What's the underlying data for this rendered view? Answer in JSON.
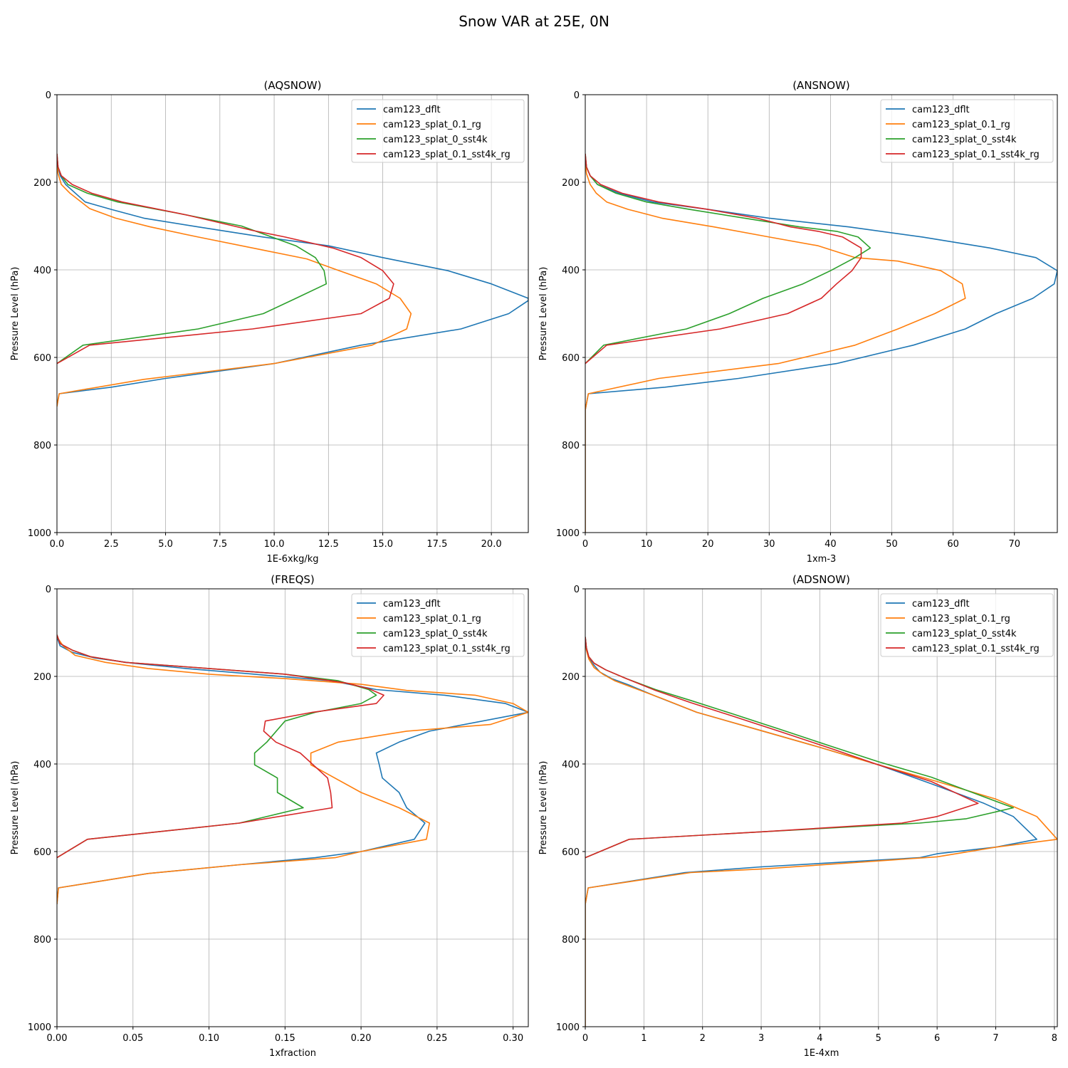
{
  "figure_title": "Snow VAR at 25E, 0N",
  "colors": {
    "cam123_dflt": "#1f77b4",
    "cam123_splat_0.1_rg": "#ff7f0e",
    "cam123_splat_0_sst4k": "#2ca02c",
    "cam123_splat_0.1_sst4k_rg": "#d62728"
  },
  "chart_data": [
    {
      "type": "line",
      "title": "(AQSNOW)",
      "xlabel": "1E-6xkg/kg",
      "ylabel": "Pressure Level (hPa)",
      "xlim": [
        0,
        21.7
      ],
      "ylim": [
        1000,
        0
      ],
      "xticks": [
        0,
        2.5,
        5,
        7.5,
        10,
        12.5,
        15,
        17.5,
        20
      ],
      "xtick_labels": [
        "0.0",
        "2.5",
        "5.0",
        "7.5",
        "10.0",
        "12.5",
        "15.0",
        "17.5",
        "20.0"
      ],
      "yticks": [
        0,
        200,
        400,
        600,
        800,
        1000
      ],
      "ytick_labels": [
        "0",
        "200",
        "400",
        "600",
        "800",
        "1000"
      ],
      "grid": true,
      "legend": "top-right",
      "series": [
        {
          "name": "cam123_dflt",
          "x": [
            0,
            0.05,
            0.15,
            0.4,
            1.3,
            2.5,
            4,
            6.5,
            9.5,
            12.5,
            15,
            18,
            20,
            21.7,
            21.7,
            20.8,
            18.6,
            14,
            10,
            5,
            2.5,
            0.1,
            0
          ],
          "y": [
            140,
            165,
            185,
            205,
            245,
            262,
            282,
            302,
            325,
            345,
            372,
            402,
            432,
            465,
            470,
            500,
            535,
            572,
            614,
            648,
            668,
            683,
            710
          ]
        },
        {
          "name": "cam123_splat_0.1_rg",
          "x": [
            0,
            0.05,
            0.2,
            0.6,
            1.5,
            2.7,
            4.3,
            6.5,
            9.5,
            11.5,
            13,
            14.7,
            15.8,
            16.3,
            16.1,
            14.5,
            10,
            4,
            0.1,
            0
          ],
          "y": [
            150,
            180,
            205,
            225,
            260,
            282,
            302,
            325,
            355,
            375,
            402,
            432,
            465,
            500,
            535,
            572,
            614,
            650,
            683,
            712
          ]
        },
        {
          "name": "cam123_splat_0_sst4k",
          "x": [
            0,
            0.05,
            0.2,
            0.5,
            1.4,
            2.8,
            5.5,
            8.5,
            11,
            11.9,
            12.3,
            12.4,
            11,
            9.5,
            6.5,
            1.2,
            0
          ],
          "y": [
            135,
            165,
            185,
            205,
            225,
            245,
            270,
            300,
            345,
            372,
            402,
            432,
            465,
            500,
            535,
            572,
            614
          ]
        },
        {
          "name": "cam123_splat_0.1_sst4k_rg",
          "x": [
            0,
            0.05,
            0.2,
            0.7,
            1.6,
            3,
            6,
            9,
            10.5,
            12.7,
            14,
            15,
            15.5,
            15.3,
            14,
            9,
            1.5,
            0
          ],
          "y": [
            135,
            165,
            185,
            205,
            225,
            245,
            275,
            310,
            325,
            350,
            372,
            402,
            432,
            465,
            500,
            535,
            572,
            614
          ]
        }
      ]
    },
    {
      "type": "line",
      "title": "(ANSNOW)",
      "xlabel": "1xm-3",
      "ylabel": "Pressure Level (hPa)",
      "xlim": [
        0,
        77
      ],
      "ylim": [
        1000,
        0
      ],
      "xticks": [
        0,
        10,
        20,
        30,
        40,
        50,
        60,
        70
      ],
      "xtick_labels": [
        "0",
        "10",
        "20",
        "30",
        "40",
        "50",
        "60",
        "70"
      ],
      "yticks": [
        0,
        200,
        400,
        600,
        800,
        1000
      ],
      "ytick_labels": [
        "0",
        "200",
        "400",
        "600",
        "800",
        "1000"
      ],
      "grid": true,
      "legend": "top-right",
      "series": [
        {
          "name": "cam123_dflt",
          "x": [
            0,
            0.2,
            0.8,
            2,
            5.5,
            11,
            20,
            30,
            43,
            55,
            66,
            73.5,
            77,
            76.5,
            73,
            67,
            62,
            53.5,
            41,
            25,
            13,
            0.5,
            0,
            0
          ],
          "y": [
            140,
            165,
            185,
            205,
            225,
            245,
            262,
            282,
            302,
            325,
            350,
            372,
            402,
            432,
            465,
            500,
            535,
            572,
            614,
            648,
            668,
            683,
            720,
            1000
          ]
        },
        {
          "name": "cam123_splat_0.1_rg",
          "x": [
            0,
            0.2,
            0.8,
            1.8,
            3.5,
            7,
            12.5,
            21,
            30,
            38,
            44,
            51,
            58,
            61.5,
            62,
            57,
            51,
            44,
            31.5,
            12,
            0.5,
            0,
            0
          ],
          "y": [
            150,
            180,
            205,
            225,
            245,
            262,
            282,
            302,
            325,
            345,
            372,
            380,
            402,
            432,
            465,
            500,
            535,
            572,
            614,
            648,
            683,
            720,
            1000
          ]
        },
        {
          "name": "cam123_splat_0_sst4k",
          "x": [
            0,
            0.2,
            0.8,
            2,
            5,
            10,
            17,
            26,
            35,
            41,
            44.5,
            46.5,
            44,
            40,
            35.5,
            29,
            23.5,
            16.5,
            3,
            0
          ],
          "y": [
            135,
            165,
            185,
            205,
            225,
            245,
            262,
            282,
            302,
            312,
            325,
            350,
            372,
            402,
            432,
            465,
            500,
            535,
            572,
            614
          ]
        },
        {
          "name": "cam123_splat_0.1_sst4k_rg",
          "x": [
            0,
            0.2,
            0.8,
            2.5,
            6,
            12,
            20,
            28,
            33.5,
            38,
            42,
            45,
            45,
            43.5,
            41,
            38.5,
            33,
            22,
            3.5,
            0
          ],
          "y": [
            135,
            165,
            185,
            205,
            225,
            245,
            262,
            282,
            302,
            312,
            325,
            350,
            372,
            402,
            432,
            465,
            500,
            535,
            572,
            614
          ]
        }
      ]
    },
    {
      "type": "line",
      "title": "(FREQS)",
      "xlabel": "1xfraction",
      "ylabel": "Pressure Level (hPa)",
      "xlim": [
        0,
        0.31
      ],
      "ylim": [
        1000,
        0
      ],
      "xticks": [
        0,
        0.05,
        0.1,
        0.15,
        0.2,
        0.25,
        0.3
      ],
      "xtick_labels": [
        "0.00",
        "0.05",
        "0.10",
        "0.15",
        "0.20",
        "0.25",
        "0.30"
      ],
      "yticks": [
        0,
        200,
        400,
        600,
        800,
        1000
      ],
      "ytick_labels": [
        "0",
        "200",
        "400",
        "600",
        "800",
        "1000"
      ],
      "grid": true,
      "legend": "top-right",
      "series": [
        {
          "name": "cam123_dflt",
          "x": [
            0,
            0.002,
            0.01,
            0.025,
            0.05,
            0.085,
            0.13,
            0.18,
            0.21,
            0.255,
            0.295,
            0.31,
            0.245,
            0.225,
            0.21,
            0.212,
            0.214,
            0.225,
            0.23,
            0.242,
            0.235,
            0.2,
            0.17,
            0.12,
            0.06,
            0.001,
            0
          ],
          "y": [
            110,
            130,
            145,
            158,
            170,
            182,
            195,
            210,
            230,
            243,
            262,
            282,
            325,
            350,
            375,
            402,
            432,
            465,
            500,
            535,
            572,
            600,
            614,
            630,
            650,
            683,
            720
          ]
        },
        {
          "name": "cam123_splat_0.1_rg",
          "x": [
            0,
            0.004,
            0.012,
            0.032,
            0.06,
            0.1,
            0.15,
            0.2,
            0.23,
            0.275,
            0.3,
            0.31,
            0.285,
            0.23,
            0.185,
            0.167,
            0.167,
            0.2,
            0.225,
            0.245,
            0.243,
            0.2,
            0.183,
            0.12,
            0.06,
            0.001,
            0
          ],
          "y": [
            110,
            130,
            152,
            168,
            182,
            195,
            205,
            218,
            232,
            243,
            262,
            282,
            310,
            325,
            350,
            375,
            402,
            465,
            500,
            535,
            572,
            600,
            614,
            630,
            650,
            683,
            720
          ]
        },
        {
          "name": "cam123_splat_0_sst4k",
          "x": [
            0,
            0.002,
            0.01,
            0.022,
            0.045,
            0.1,
            0.15,
            0.185,
            0.205,
            0.21,
            0.2,
            0.17,
            0.15,
            0.138,
            0.13,
            0.13,
            0.145,
            0.145,
            0.162,
            0.12,
            0.02,
            0
          ],
          "y": [
            105,
            125,
            140,
            155,
            168,
            182,
            195,
            210,
            230,
            243,
            262,
            282,
            302,
            350,
            375,
            402,
            432,
            465,
            500,
            535,
            572,
            614
          ]
        },
        {
          "name": "cam123_splat_0.1_sst4k_rg",
          "x": [
            0,
            0.002,
            0.01,
            0.022,
            0.045,
            0.1,
            0.15,
            0.19,
            0.205,
            0.215,
            0.21,
            0.168,
            0.137,
            0.136,
            0.144,
            0.16,
            0.178,
            0.18,
            0.181,
            0.12,
            0.02,
            0
          ],
          "y": [
            105,
            125,
            140,
            155,
            168,
            182,
            195,
            215,
            228,
            243,
            262,
            282,
            302,
            325,
            350,
            375,
            432,
            465,
            500,
            535,
            572,
            614
          ]
        }
      ]
    },
    {
      "type": "line",
      "title": "(ADSNOW)",
      "xlabel": "1E-4xm",
      "ylabel": "Pressure Level (hPa)",
      "xlim": [
        0,
        8.05
      ],
      "ylim": [
        1000,
        0
      ],
      "xticks": [
        0,
        1,
        2,
        3,
        4,
        5,
        6,
        7,
        8
      ],
      "xtick_labels": [
        "0",
        "1",
        "2",
        "3",
        "4",
        "5",
        "6",
        "7",
        "8"
      ],
      "yticks": [
        0,
        200,
        400,
        600,
        800,
        1000
      ],
      "ytick_labels": [
        "0",
        "200",
        "400",
        "600",
        "800",
        "1000"
      ],
      "grid": true,
      "legend": "top-right",
      "series": [
        {
          "name": "cam123_dflt",
          "x": [
            0,
            0.02,
            0.06,
            0.12,
            0.25,
            0.45,
            0.75,
            1.2,
            1.9,
            2.9,
            4,
            5,
            5.9,
            6.8,
            7.3,
            7.7,
            7,
            6,
            5.7,
            3,
            1.7,
            0.05,
            0,
            0
          ],
          "y": [
            110,
            135,
            155,
            170,
            190,
            205,
            220,
            245,
            282,
            320,
            362,
            402,
            445,
            490,
            520,
            572,
            590,
            605,
            614,
            635,
            648,
            683,
            720,
            1000
          ]
        },
        {
          "name": "cam123_splat_0.1_rg",
          "x": [
            0,
            0.02,
            0.06,
            0.15,
            0.3,
            0.5,
            0.8,
            1.3,
            1.9,
            2.9,
            4,
            5,
            6,
            7,
            7.7,
            8.05,
            7,
            6,
            3,
            1.8,
            0.05,
            0,
            0
          ],
          "y": [
            115,
            140,
            160,
            180,
            195,
            210,
            225,
            250,
            282,
            320,
            362,
            402,
            440,
            480,
            520,
            572,
            590,
            612,
            640,
            648,
            683,
            720,
            1000
          ]
        },
        {
          "name": "cam123_splat_0_sst4k",
          "x": [
            0,
            0.02,
            0.06,
            0.15,
            0.35,
            0.7,
            1.2,
            1.8,
            2.5,
            3.3,
            4.2,
            5,
            5.9,
            6.6,
            7.3,
            6.5,
            5.7,
            3,
            0.75,
            0
          ],
          "y": [
            110,
            135,
            155,
            170,
            185,
            205,
            230,
            255,
            285,
            320,
            360,
            395,
            430,
            465,
            500,
            525,
            535,
            555,
            572,
            614
          ]
        },
        {
          "name": "cam123_splat_0.1_sst4k_rg",
          "x": [
            0,
            0.02,
            0.06,
            0.15,
            0.35,
            0.7,
            1.2,
            1.8,
            2.5,
            3.3,
            4.2,
            5,
            5.9,
            6.7,
            6,
            5.4,
            3,
            0.75,
            0
          ],
          "y": [
            110,
            135,
            155,
            170,
            185,
            205,
            232,
            260,
            290,
            325,
            365,
            402,
            440,
            490,
            520,
            535,
            555,
            572,
            614
          ]
        }
      ]
    }
  ]
}
